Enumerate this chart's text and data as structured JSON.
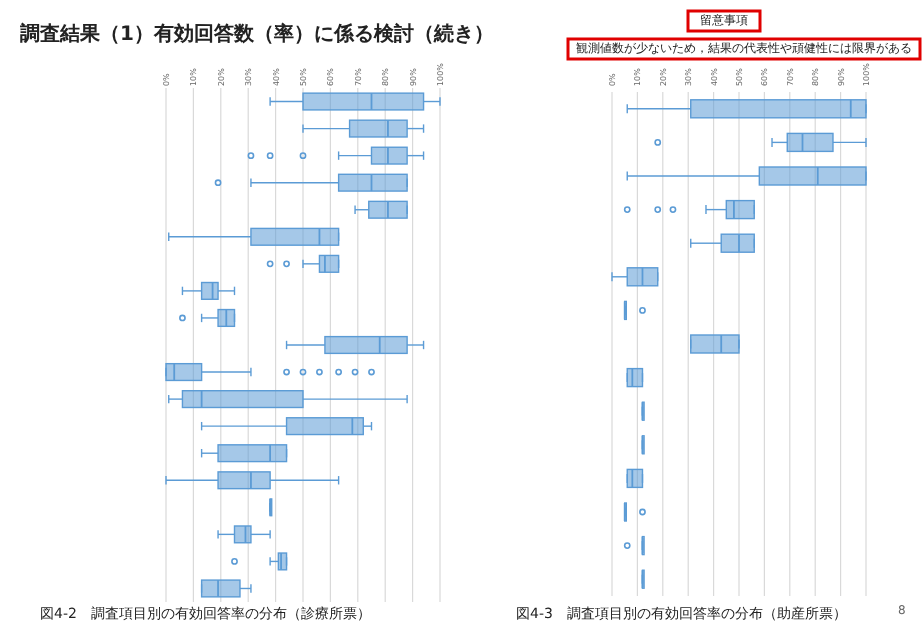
{
  "chart_data": [
    {
      "type": "box",
      "title": "調査結果（1）有効回答数（率）に係る検討（続き）",
      "orientation": "horizontal",
      "categories": [
        null,
        null,
        null,
        null,
        null,
        null,
        null,
        null,
        null,
        null,
        null,
        null,
        null,
        null,
        null,
        null,
        null,
        null,
        null
      ],
      "xlim": [
        0,
        100
      ],
      "xticks": [
        {
          "value": 0,
          "label": "0%"
        },
        {
          "value": 10,
          "label": "10%"
        },
        {
          "value": 20,
          "label": "20%"
        },
        {
          "value": 30,
          "label": "30%"
        },
        {
          "value": 40,
          "label": "40%"
        },
        {
          "value": 50,
          "label": "50%"
        },
        {
          "value": 60,
          "label": "60%"
        },
        {
          "value": 70,
          "label": "70%"
        },
        {
          "value": 80,
          "label": "80%"
        },
        {
          "value": 90,
          "label": "90%"
        },
        {
          "value": 100,
          "label": "100%"
        }
      ],
      "grid": "x",
      "series": [
        {
          "color": "#5b9bd5",
          "boxes": [
            {
              "low": 38,
              "q1": 50,
              "median": 75,
              "q3": 94,
              "high": 100
            },
            {
              "low": 50,
              "q1": 67,
              "median": 81,
              "q3": 88,
              "high": 94
            },
            {
              "low": 63,
              "q1": 75,
              "median": 81,
              "q3": 88,
              "high": 94,
              "outliers": [
                31,
                38,
                50
              ]
            },
            {
              "low": 31,
              "q1": 63,
              "median": 75,
              "q3": 88,
              "high": 88,
              "outliers": [
                19
              ]
            },
            {
              "low": 69,
              "q1": 74,
              "median": 81,
              "q3": 88,
              "high": 88
            },
            {
              "low": 1,
              "q1": 31,
              "median": 56,
              "q3": 63,
              "high": 63
            },
            {
              "low": 50,
              "q1": 56,
              "median": 58,
              "q3": 63,
              "high": 63,
              "outliers": [
                38,
                44
              ]
            },
            {
              "low": 6,
              "q1": 13,
              "median": 17,
              "q3": 19,
              "high": 25
            },
            {
              "low": 13,
              "q1": 19,
              "median": 22,
              "q3": 25,
              "high": 25,
              "outliers": [
                6
              ]
            },
            {
              "low": 44,
              "q1": 58,
              "median": 78,
              "q3": 88,
              "high": 94
            },
            {
              "low": 0,
              "q1": 0,
              "median": 3,
              "q3": 13,
              "high": 31,
              "outliers": [
                44,
                50,
                56,
                63,
                69,
                75
              ]
            },
            {
              "low": 1,
              "q1": 6,
              "median": 13,
              "q3": 50,
              "high": 88
            },
            {
              "low": 13,
              "q1": 44,
              "median": 68,
              "q3": 72,
              "high": 75
            },
            {
              "low": 13,
              "q1": 19,
              "median": 38,
              "q3": 44,
              "high": 44
            },
            {
              "low": 0,
              "q1": 19,
              "median": 31,
              "q3": 38,
              "high": 63
            },
            {
              "low": 38,
              "q1": 38,
              "median": 38,
              "q3": 38,
              "high": 38
            },
            {
              "low": 19,
              "q1": 25,
              "median": 29,
              "q3": 31,
              "high": 38
            },
            {
              "low": 38,
              "q1": 41,
              "median": 42,
              "q3": 44,
              "high": 44,
              "outliers": [
                25
              ]
            },
            {
              "low": 13,
              "q1": 13,
              "median": 19,
              "q3": 27,
              "high": 31
            }
          ]
        }
      ],
      "annotations": [
        "図4-2　調査項目別の有効回答率の分布（診療所票）"
      ]
    },
    {
      "type": "box",
      "orientation": "horizontal",
      "categories": [
        null,
        null,
        null,
        null,
        null,
        null,
        null,
        null,
        null,
        null,
        null,
        null,
        null,
        null,
        null
      ],
      "xlim": [
        0,
        100
      ],
      "xticks": [
        {
          "value": 0,
          "label": "0%"
        },
        {
          "value": 10,
          "label": "10%"
        },
        {
          "value": 20,
          "label": "20%"
        },
        {
          "value": 30,
          "label": "30%"
        },
        {
          "value": 40,
          "label": "40%"
        },
        {
          "value": 50,
          "label": "50%"
        },
        {
          "value": 60,
          "label": "60%"
        },
        {
          "value": 70,
          "label": "70%"
        },
        {
          "value": 80,
          "label": "80%"
        },
        {
          "value": 90,
          "label": "90%"
        },
        {
          "value": 100,
          "label": "100%"
        }
      ],
      "grid": "x",
      "series": [
        {
          "color": "#5b9bd5",
          "boxes": [
            {
              "low": 6,
              "q1": 31,
              "median": 94,
              "q3": 100,
              "high": 100
            },
            {
              "low": 63,
              "q1": 69,
              "median": 75,
              "q3": 87,
              "high": 100,
              "outliers": [
                18
              ]
            },
            {
              "low": 6,
              "q1": 58,
              "median": 81,
              "q3": 100,
              "high": 100
            },
            {
              "low": 37,
              "q1": 45,
              "median": 48,
              "q3": 56,
              "high": 56,
              "outliers": [
                6,
                18,
                24
              ]
            },
            {
              "low": 31,
              "q1": 43,
              "median": 50,
              "q3": 56,
              "high": 56
            },
            {
              "low": 0,
              "q1": 6,
              "median": 12,
              "q3": 18,
              "high": 18
            },
            {
              "low": 5,
              "q1": 5,
              "median": 5,
              "q3": 5,
              "high": 5,
              "outliers": [
                12
              ]
            },
            {
              "low": 31,
              "q1": 31,
              "median": 43,
              "q3": 50,
              "high": 50
            },
            {
              "low": 6,
              "q1": 6,
              "median": 8,
              "q3": 12,
              "high": 12
            },
            {
              "low": 12,
              "q1": 12,
              "median": 12,
              "q3": 12,
              "high": 12
            },
            {
              "low": 12,
              "q1": 12,
              "median": 12,
              "q3": 12,
              "high": 12
            },
            {
              "low": 6,
              "q1": 6,
              "median": 8,
              "q3": 12,
              "high": 12
            },
            {
              "low": 5,
              "q1": 5,
              "median": 5,
              "q3": 5,
              "high": 5,
              "outliers": [
                12
              ]
            },
            {
              "low": 12,
              "q1": 12,
              "median": 12,
              "q3": 12,
              "high": 12,
              "outliers": [
                6
              ]
            },
            {
              "low": 12,
              "q1": 12,
              "median": 12,
              "q3": 12,
              "high": 12
            }
          ]
        }
      ],
      "annotations": [
        "留意事項",
        "観測値数が少ないため，結果の代表性や頑健性には限界がある",
        "図4-3　調査項目別の有効回答率の分布（助産所票）",
        "8"
      ]
    }
  ]
}
